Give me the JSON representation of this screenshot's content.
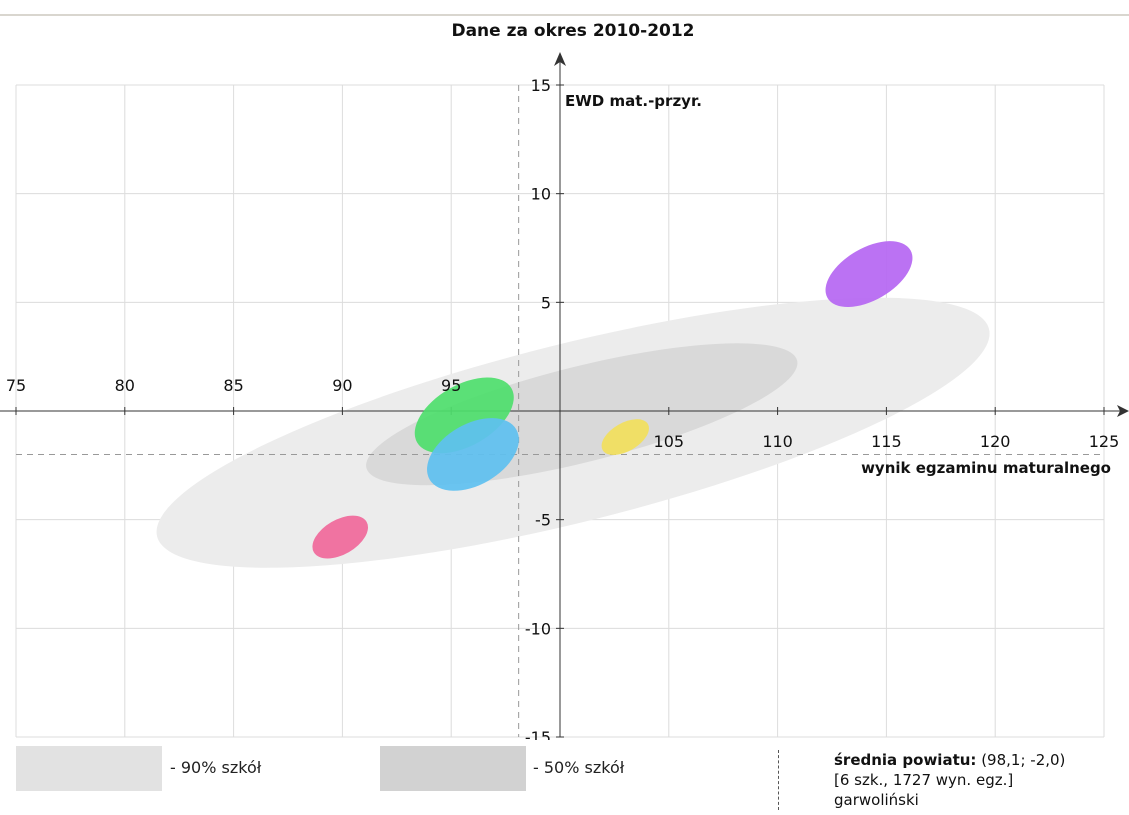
{
  "chart_data": {
    "type": "scatter",
    "title": "Dane za okres 2010-2012",
    "xlabel": "wynik egzaminu maturalnego",
    "ylabel": "EWD mat.-przyr.",
    "xlim": [
      75,
      125
    ],
    "ylim": [
      -15,
      15
    ],
    "x_ticks": [
      "75",
      "80",
      "85",
      "90",
      "95",
      "100",
      "105",
      "110",
      "115",
      "120",
      "125"
    ],
    "x_tick_values": [
      75,
      80,
      85,
      90,
      95,
      100,
      105,
      110,
      115,
      120,
      125
    ],
    "y_ticks": [
      "15",
      "10",
      "5",
      "-5",
      "-10",
      "-15"
    ],
    "y_tick_values": [
      15,
      10,
      5,
      -5,
      -10,
      -15
    ],
    "grid": true,
    "reference_lines": {
      "x": 98.1,
      "y": -2.0
    },
    "bands": [
      {
        "label": "- 90% szkół",
        "color": "#ececec",
        "center": [
          100.6,
          -1.0
        ],
        "rx": 19.7,
        "ry": 4.1,
        "angle_deg": -14
      },
      {
        "label": "- 50% szkół",
        "color": "#d9d9d9",
        "center": [
          101.0,
          -0.15
        ],
        "rx": 10.2,
        "ry": 2.2,
        "angle_deg": -14
      }
    ],
    "schools": [
      {
        "center": [
          114.2,
          6.3
        ],
        "rx": 2.2,
        "ry": 1.2,
        "angle_deg": -30,
        "color": "#b566f2"
      },
      {
        "center": [
          95.6,
          -0.2
        ],
        "rx": 2.5,
        "ry": 1.4,
        "angle_deg": -30,
        "color": "#4ede6c"
      },
      {
        "center": [
          96.0,
          -2.0
        ],
        "rx": 2.3,
        "ry": 1.4,
        "angle_deg": -30,
        "color": "#5ec0f0"
      },
      {
        "center": [
          103.0,
          -1.2
        ],
        "rx": 1.2,
        "ry": 0.65,
        "angle_deg": -30,
        "color": "#f2e05c"
      },
      {
        "center": [
          89.9,
          -5.8
        ],
        "rx": 1.4,
        "ry": 0.8,
        "angle_deg": -30,
        "color": "#f0689a"
      }
    ]
  },
  "legend": {
    "band90_label": "- 90% szkół",
    "band50_label": "- 50% szkół",
    "band90_color": "#e2e2e2",
    "band50_color": "#d2d2d2"
  },
  "summary": {
    "line1_bold": "średnia powiatu:",
    "line1_value": "(98,1; -2,0)",
    "line2": "[6 szk., 1727 wyn. egz.]",
    "line3": "garwoliński"
  }
}
